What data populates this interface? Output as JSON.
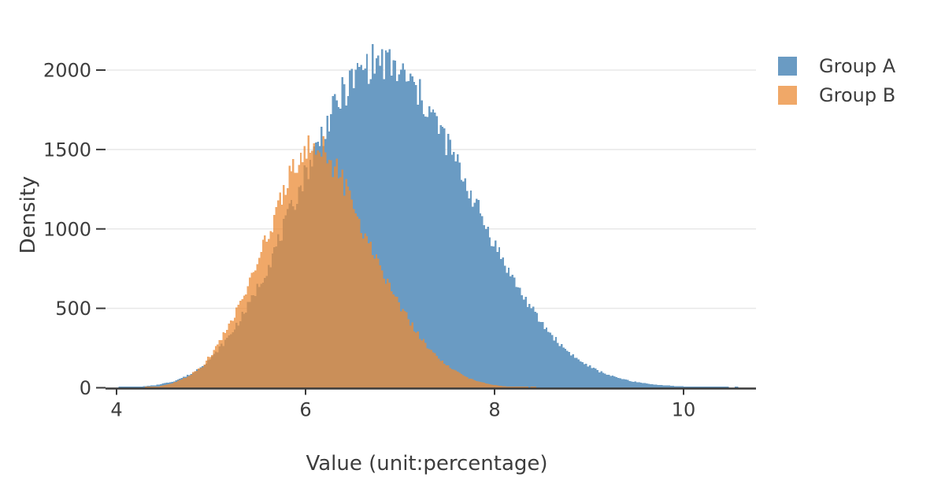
{
  "chart_data": {
    "type": "histogram",
    "title": "",
    "xlabel": "Value (unit:percentage)",
    "ylabel": "Density",
    "x_ticks": [
      4,
      6,
      8,
      10
    ],
    "y_ticks": [
      0,
      500,
      1000,
      1500,
      2000
    ],
    "xlim": [
      3.88,
      10.8
    ],
    "ylim": [
      0,
      2350
    ],
    "grid": "horizontal-only",
    "gridline_color": "#e8e8e8",
    "axis_line_color": "#3a3a3a",
    "text_color": "#3d3d3d",
    "legend_position": "outside-top-right",
    "bin_width": 0.02,
    "noise": {
      "amplitude": 0.12,
      "seed": 7
    },
    "series": [
      {
        "name": "Group A",
        "color": "#6A9BC3",
        "swatch_color": "#6A9BC3",
        "fill_opacity": 1.0,
        "peak_x": 6.75,
        "peak_count": 2060,
        "range": [
          4.0,
          10.6
        ],
        "envelope": [
          [
            4.0,
            0
          ],
          [
            4.2,
            5
          ],
          [
            4.4,
            15
          ],
          [
            4.6,
            40
          ],
          [
            4.8,
            90
          ],
          [
            5.0,
            185
          ],
          [
            5.2,
            330
          ],
          [
            5.4,
            520
          ],
          [
            5.6,
            760
          ],
          [
            5.8,
            1050
          ],
          [
            6.0,
            1350
          ],
          [
            6.2,
            1630
          ],
          [
            6.4,
            1860
          ],
          [
            6.6,
            2010
          ],
          [
            6.75,
            2060
          ],
          [
            6.9,
            2030
          ],
          [
            7.1,
            1930
          ],
          [
            7.3,
            1760
          ],
          [
            7.5,
            1540
          ],
          [
            7.7,
            1290
          ],
          [
            7.9,
            1030
          ],
          [
            8.1,
            790
          ],
          [
            8.3,
            580
          ],
          [
            8.5,
            405
          ],
          [
            8.7,
            270
          ],
          [
            8.9,
            170
          ],
          [
            9.1,
            105
          ],
          [
            9.3,
            62
          ],
          [
            9.5,
            36
          ],
          [
            9.7,
            20
          ],
          [
            9.9,
            11
          ],
          [
            10.1,
            6
          ],
          [
            10.3,
            3
          ],
          [
            10.5,
            1
          ],
          [
            10.6,
            0
          ]
        ]
      },
      {
        "name": "Group B",
        "color": "#EB8B36",
        "swatch_color": "#F0A868",
        "fill_opacity": 0.75,
        "peak_x": 6.05,
        "peak_count": 1545,
        "range": [
          4.3,
          8.5
        ],
        "envelope": [
          [
            4.3,
            0
          ],
          [
            4.45,
            8
          ],
          [
            4.6,
            30
          ],
          [
            4.75,
            70
          ],
          [
            4.9,
            130
          ],
          [
            5.0,
            210
          ],
          [
            5.1,
            300
          ],
          [
            5.2,
            400
          ],
          [
            5.3,
            520
          ],
          [
            5.4,
            650
          ],
          [
            5.5,
            800
          ],
          [
            5.6,
            960
          ],
          [
            5.7,
            1120
          ],
          [
            5.8,
            1290
          ],
          [
            5.9,
            1430
          ],
          [
            6.0,
            1520
          ],
          [
            6.1,
            1545
          ],
          [
            6.2,
            1500
          ],
          [
            6.3,
            1400
          ],
          [
            6.4,
            1290
          ],
          [
            6.5,
            1150
          ],
          [
            6.6,
            1010
          ],
          [
            6.7,
            880
          ],
          [
            6.8,
            750
          ],
          [
            6.9,
            630
          ],
          [
            7.0,
            520
          ],
          [
            7.1,
            420
          ],
          [
            7.2,
            330
          ],
          [
            7.3,
            255
          ],
          [
            7.4,
            190
          ],
          [
            7.5,
            140
          ],
          [
            7.6,
            100
          ],
          [
            7.7,
            68
          ],
          [
            7.8,
            45
          ],
          [
            7.9,
            28
          ],
          [
            8.0,
            17
          ],
          [
            8.1,
            10
          ],
          [
            8.2,
            5
          ],
          [
            8.35,
            2
          ],
          [
            8.5,
            0
          ]
        ]
      }
    ]
  }
}
